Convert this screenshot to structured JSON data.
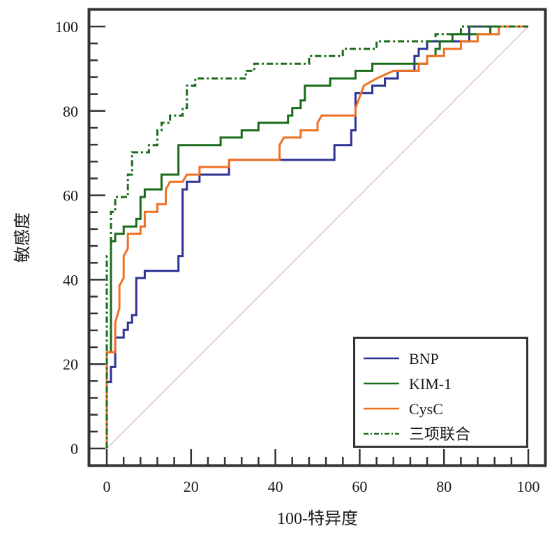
{
  "chart_data": {
    "type": "line",
    "title": "",
    "xlabel": "100-特异度",
    "ylabel": "敏感度",
    "xlim": [
      0,
      100
    ],
    "ylim": [
      0,
      100
    ],
    "x_ticks": [
      0,
      20,
      40,
      60,
      80,
      100
    ],
    "x_tick_labels": [
      "0",
      "20",
      "40",
      "60",
      "80",
      "100"
    ],
    "y_ticks": [
      0,
      20,
      40,
      60,
      80,
      100
    ],
    "y_tick_labels": [
      "0",
      "20",
      "40",
      "60",
      "80",
      "100"
    ],
    "minor_ticks_per_major": 4,
    "grid": false,
    "legend_position": "bottom-right",
    "reference_line": {
      "name": "diagonal",
      "points": [
        [
          0,
          0
        ],
        [
          100,
          100
        ]
      ],
      "color": "#d9b3b3"
    },
    "series": [
      {
        "name": "BNP",
        "color": "#2e3192",
        "style": "solid",
        "points": [
          [
            0,
            0
          ],
          [
            0,
            15.8
          ],
          [
            1,
            15.8
          ],
          [
            1,
            19.3
          ],
          [
            2,
            19.3
          ],
          [
            2,
            26.3
          ],
          [
            4,
            26.3
          ],
          [
            4,
            28.1
          ],
          [
            5,
            28.1
          ],
          [
            5,
            29.8
          ],
          [
            6,
            29.8
          ],
          [
            6,
            31.6
          ],
          [
            7,
            31.6
          ],
          [
            7,
            40.4
          ],
          [
            9,
            40.4
          ],
          [
            9,
            42.1
          ],
          [
            17,
            42.1
          ],
          [
            17,
            45.6
          ],
          [
            18,
            45.6
          ],
          [
            18,
            61.4
          ],
          [
            19,
            61.4
          ],
          [
            19,
            63.2
          ],
          [
            22,
            63.2
          ],
          [
            22,
            64.9
          ],
          [
            29,
            64.9
          ],
          [
            29,
            68.4
          ],
          [
            54,
            68.4
          ],
          [
            54,
            71.9
          ],
          [
            58,
            71.9
          ],
          [
            58,
            75.4
          ],
          [
            59,
            75.4
          ],
          [
            59,
            84.2
          ],
          [
            63,
            84.2
          ],
          [
            63,
            86
          ],
          [
            66,
            86
          ],
          [
            66,
            87.7
          ],
          [
            69,
            87.7
          ],
          [
            69,
            89.5
          ],
          [
            73,
            89.5
          ],
          [
            73,
            93
          ],
          [
            74,
            93
          ],
          [
            74,
            94.7
          ],
          [
            76,
            94.7
          ],
          [
            76,
            96.5
          ],
          [
            86,
            96.5
          ],
          [
            86,
            100
          ],
          [
            100,
            100
          ]
        ]
      },
      {
        "name": "KIM-1",
        "color": "#1a6b1a",
        "style": "solid",
        "points": [
          [
            0,
            0
          ],
          [
            0,
            22.8
          ],
          [
            1,
            22.8
          ],
          [
            1,
            49.1
          ],
          [
            2,
            49.1
          ],
          [
            2,
            50.9
          ],
          [
            4,
            50.9
          ],
          [
            4,
            52.6
          ],
          [
            7,
            52.6
          ],
          [
            7,
            54.4
          ],
          [
            8,
            54.4
          ],
          [
            8,
            59.6
          ],
          [
            9,
            59.6
          ],
          [
            9,
            61.4
          ],
          [
            13,
            61.4
          ],
          [
            13,
            64.9
          ],
          [
            17,
            64.9
          ],
          [
            17,
            71.9
          ],
          [
            27,
            71.9
          ],
          [
            27,
            73.7
          ],
          [
            32,
            73.7
          ],
          [
            32,
            75.4
          ],
          [
            36,
            75.4
          ],
          [
            36,
            77.2
          ],
          [
            43,
            77.2
          ],
          [
            43,
            78.9
          ],
          [
            44,
            78.9
          ],
          [
            44,
            80.7
          ],
          [
            46,
            80.7
          ],
          [
            46,
            82.5
          ],
          [
            47,
            82.5
          ],
          [
            47,
            86
          ],
          [
            53,
            86
          ],
          [
            53,
            87.7
          ],
          [
            59,
            87.7
          ],
          [
            59,
            89.5
          ],
          [
            63,
            89.5
          ],
          [
            63,
            91.2
          ],
          [
            76,
            91.2
          ],
          [
            76,
            93
          ],
          [
            78,
            93
          ],
          [
            78,
            94.7
          ],
          [
            79,
            94.7
          ],
          [
            79,
            96.5
          ],
          [
            82,
            96.5
          ],
          [
            82,
            98.2
          ],
          [
            91,
            98.2
          ],
          [
            91,
            100
          ],
          [
            100,
            100
          ]
        ]
      },
      {
        "name": "CysC",
        "color": "#f07022",
        "style": "solid",
        "points": [
          [
            0,
            0
          ],
          [
            0,
            22.8
          ],
          [
            2,
            22.8
          ],
          [
            2,
            29.8
          ],
          [
            3,
            33.3
          ],
          [
            3,
            38.6
          ],
          [
            4,
            40.4
          ],
          [
            4,
            45.6
          ],
          [
            5,
            47.4
          ],
          [
            5,
            50.9
          ],
          [
            8,
            50.9
          ],
          [
            8,
            52.6
          ],
          [
            9,
            52.6
          ],
          [
            9,
            56.1
          ],
          [
            12,
            56.1
          ],
          [
            12,
            57.9
          ],
          [
            14,
            57.9
          ],
          [
            14,
            61.4
          ],
          [
            15,
            63.2
          ],
          [
            18,
            63.2
          ],
          [
            19,
            64.9
          ],
          [
            22,
            64.9
          ],
          [
            22,
            66.7
          ],
          [
            29,
            66.7
          ],
          [
            29,
            68.4
          ],
          [
            41,
            68.4
          ],
          [
            41,
            71.9
          ],
          [
            42,
            73.7
          ],
          [
            46,
            73.7
          ],
          [
            46,
            75.4
          ],
          [
            50,
            75.4
          ],
          [
            50,
            77.2
          ],
          [
            51,
            78.9
          ],
          [
            59,
            78.9
          ],
          [
            59,
            80.7
          ],
          [
            61,
            86
          ],
          [
            64,
            87.7
          ],
          [
            68,
            89.5
          ],
          [
            74,
            89.5
          ],
          [
            74,
            91.2
          ],
          [
            76,
            91.2
          ],
          [
            76,
            93
          ],
          [
            80,
            93
          ],
          [
            80,
            94.7
          ],
          [
            84,
            94.7
          ],
          [
            84,
            96.5
          ],
          [
            88,
            96.5
          ],
          [
            88,
            98.2
          ],
          [
            93,
            98.2
          ],
          [
            93,
            100
          ],
          [
            100,
            100
          ]
        ]
      },
      {
        "name": "三项联合",
        "color": "#1a6b1a",
        "style": "dashdot",
        "points": [
          [
            0,
            0
          ],
          [
            0,
            45.6
          ],
          [
            1,
            45.6
          ],
          [
            1,
            56.1
          ],
          [
            2,
            56.1
          ],
          [
            2,
            59.6
          ],
          [
            5,
            59.6
          ],
          [
            5,
            64.9
          ],
          [
            6,
            64.9
          ],
          [
            6,
            70.2
          ],
          [
            10,
            70.2
          ],
          [
            10,
            71.9
          ],
          [
            12,
            71.9
          ],
          [
            12,
            75.4
          ],
          [
            13,
            75.4
          ],
          [
            13,
            77.2
          ],
          [
            15,
            77.2
          ],
          [
            15,
            78.9
          ],
          [
            18,
            78.9
          ],
          [
            18,
            80.7
          ],
          [
            19,
            80.7
          ],
          [
            19,
            86
          ],
          [
            21,
            86
          ],
          [
            21,
            87.7
          ],
          [
            33,
            87.7
          ],
          [
            33,
            89.5
          ],
          [
            35,
            89.5
          ],
          [
            35,
            91.2
          ],
          [
            48,
            91.2
          ],
          [
            48,
            93
          ],
          [
            56,
            93
          ],
          [
            56,
            94.7
          ],
          [
            64,
            94.7
          ],
          [
            64,
            96.5
          ],
          [
            78,
            96.5
          ],
          [
            78,
            98.2
          ],
          [
            84,
            98.2
          ],
          [
            84,
            100
          ],
          [
            100,
            100
          ]
        ]
      }
    ]
  }
}
